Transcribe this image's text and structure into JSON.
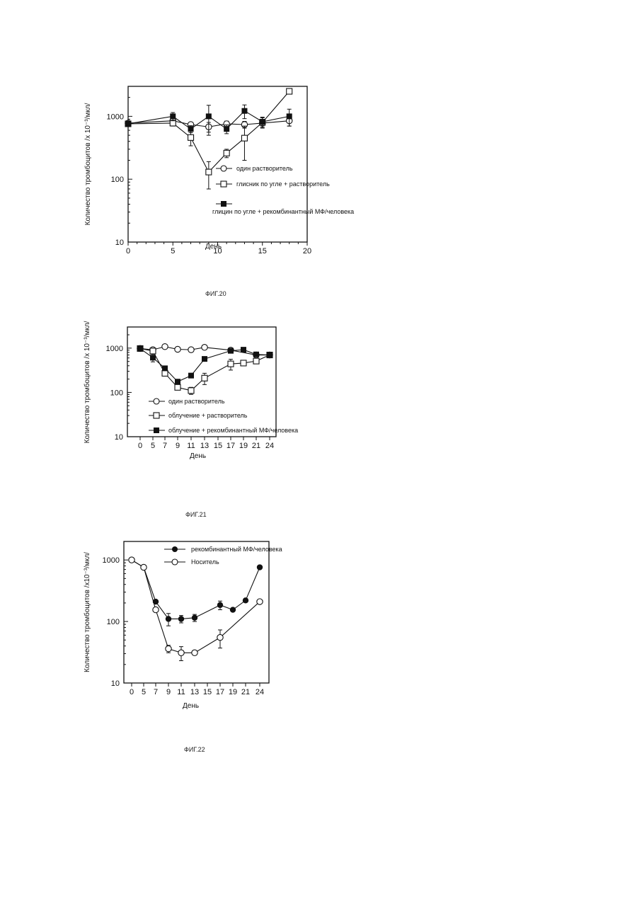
{
  "chart_data": [
    {
      "type": "line",
      "y_scale": "log",
      "ylabel": "Количество тромбоцитов /х 10⁻³/мкл/",
      "xlabel": "День",
      "xlim": [
        0,
        20
      ],
      "ylim": [
        10,
        3000
      ],
      "x_ticks": [
        "0",
        "5",
        "10",
        "15",
        "20"
      ],
      "y_ticks": [
        "10",
        "100",
        "1000"
      ],
      "series": [
        {
          "name": "один растворитель",
          "marker": "open-circle",
          "x": [
            0,
            5,
            7,
            9,
            11,
            13,
            15,
            18
          ],
          "y": [
            780,
            850,
            740,
            680,
            760,
            740,
            780,
            850
          ],
          "err": [
            0,
            60,
            50,
            120,
            80,
            90,
            70,
            150
          ]
        },
        {
          "name": "глисник по углe + растворитель",
          "marker": "open-square",
          "x": [
            0,
            5,
            7,
            9,
            11,
            13,
            15,
            18
          ],
          "y": [
            760,
            780,
            460,
            130,
            260,
            450,
            800,
            2500
          ],
          "err": [
            0,
            80,
            120,
            60,
            40,
            250,
            150,
            0
          ]
        },
        {
          "name": "глицин по углe + рекомбинантный МФ/человека",
          "marker": "filled-square",
          "x": [
            0,
            5,
            7,
            9,
            11,
            13,
            15,
            18
          ],
          "y": [
            760,
            1000,
            630,
            1000,
            630,
            1220,
            820,
            1000
          ],
          "err": [
            0,
            150,
            80,
            500,
            100,
            300,
            150,
            300
          ]
        }
      ],
      "caption": "ФИГ.20"
    },
    {
      "type": "line",
      "y_scale": "log",
      "ylabel": "Количество тромбоцитов /х 10⁻³/мкл/",
      "xlabel": "День",
      "ylim": [
        10,
        3000
      ],
      "x_ticks": [
        "0",
        "5",
        "7",
        "9",
        "11",
        "13",
        "15",
        "17",
        "19",
        "21",
        "24"
      ],
      "y_ticks": [
        "10",
        "100",
        "1000"
      ],
      "series": [
        {
          "name": "один растворитель",
          "marker": "open-circle",
          "x": [
            "0",
            "5",
            "7",
            "9",
            "11",
            "13",
            "17",
            "21",
            "24"
          ],
          "y": [
            980,
            920,
            1080,
            940,
            920,
            1040,
            900,
            700,
            700
          ],
          "err": [
            0,
            0,
            0,
            0,
            0,
            0,
            80,
            0,
            0
          ]
        },
        {
          "name": "облучение + растворитель",
          "marker": "open-square",
          "x": [
            "0",
            "5",
            "7",
            "9",
            "11",
            "13",
            "17",
            "19",
            "21",
            "24"
          ],
          "y": [
            980,
            860,
            270,
            130,
            110,
            210,
            440,
            460,
            510,
            700
          ],
          "err": [
            0,
            0,
            30,
            0,
            20,
            60,
            120,
            0,
            0,
            0
          ]
        },
        {
          "name": "облучение + рекомбинантный МФ/человека",
          "marker": "filled-square",
          "x": [
            "0",
            "5",
            "7",
            "9",
            "11",
            "13",
            "17",
            "19",
            "21",
            "24"
          ],
          "y": [
            980,
            610,
            350,
            175,
            240,
            570,
            870,
            920,
            720,
            700
          ],
          "err": [
            0,
            120,
            0,
            0,
            0,
            0,
            100,
            0,
            0,
            0
          ]
        }
      ],
      "caption": "ФИГ.21"
    },
    {
      "type": "line",
      "y_scale": "log",
      "ylabel": "Количество тромбоцитов /х10⁻³/мкл/",
      "xlabel": "День",
      "ylim": [
        10,
        2000
      ],
      "x_ticks": [
        "0",
        "5",
        "7",
        "9",
        "11",
        "13",
        "15",
        "17",
        "19",
        "21",
        "24"
      ],
      "y_ticks": [
        "10",
        "100",
        "1000"
      ],
      "series": [
        {
          "name": "рекомбинантный МФ/человека",
          "marker": "filled-circle",
          "x": [
            "0",
            "5",
            "7",
            "9",
            "11",
            "13",
            "17",
            "19",
            "21",
            "24"
          ],
          "y": [
            1000,
            760,
            210,
            110,
            110,
            115,
            185,
            155,
            220,
            760
          ],
          "err": [
            0,
            0,
            0,
            25,
            15,
            15,
            30,
            0,
            0,
            0
          ]
        },
        {
          "name": "Носитель",
          "marker": "open-circle",
          "x": [
            "0",
            "5",
            "7",
            "9",
            "11",
            "13",
            "17",
            "24"
          ],
          "y": [
            1000,
            760,
            155,
            36,
            31,
            31,
            55,
            210
          ],
          "err": [
            0,
            0,
            0,
            5,
            8,
            0,
            18,
            0
          ]
        }
      ],
      "caption": "ФИГ.22"
    }
  ]
}
